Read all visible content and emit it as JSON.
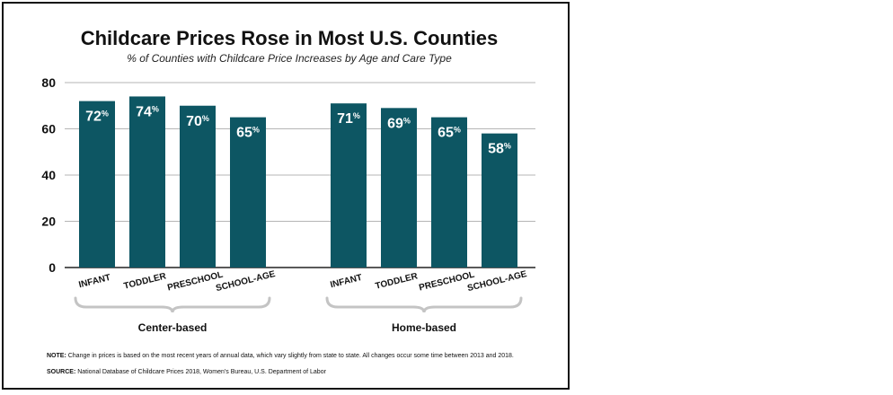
{
  "colors": {
    "bar": "#0d5663",
    "gridline": "#b5b5b5",
    "brace": "#c4c4c4",
    "text": "#111111"
  },
  "note_label": "NOTE:",
  "note_text": "Change in prices is based on the most recent years of annual data, which vary slightly from state to state. All changes occur some time between 2013 and 2018.",
  "source_label": "SOURCE:",
  "source_text": "National Database of Childcare Prices 2018, Women's Bureau, U.S. Department of Labor",
  "chart_data": {
    "type": "bar",
    "title": "Childcare Prices Rose in Most U.S. Counties",
    "subtitle": "% of Counties with Childcare Price Increases by Age and Care Type",
    "xlabel": "",
    "ylabel": "",
    "ylim": [
      0,
      80
    ],
    "yticks": [
      0,
      20,
      40,
      60,
      80
    ],
    "grid": true,
    "value_suffix": "%",
    "groups": [
      {
        "name": "Center-based",
        "categories": [
          "INFANT",
          "TODDLER",
          "PRESCHOOL",
          "SCHOOL-AGE"
        ],
        "values": [
          72,
          74,
          70,
          65
        ]
      },
      {
        "name": "Home-based",
        "categories": [
          "INFANT",
          "TODDLER",
          "PRESCHOOL",
          "SCHOOL-AGE"
        ],
        "values": [
          71,
          69,
          65,
          58
        ]
      }
    ]
  }
}
